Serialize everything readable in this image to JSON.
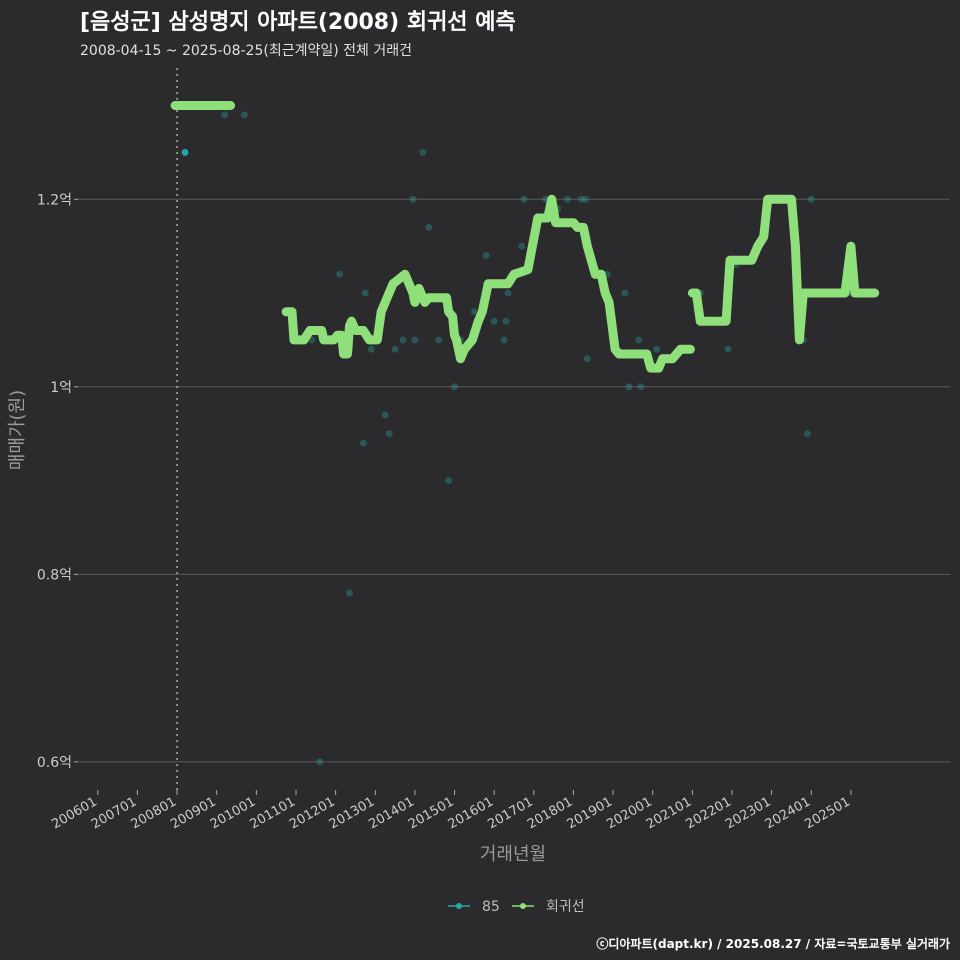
{
  "header": {
    "title": "[음성군] 삼성명지 아파트(2008) 회귀선 예측",
    "subtitle": "2008-04-15 ~ 2025-08-25(최근계약일) 전체 거래건"
  },
  "footer": {
    "credit": "ⓒ디아파트(dapt.kr) / 2025.08.27 / 자료=국토교통부 실거래가"
  },
  "chart_data": {
    "type": "line",
    "title": "[음성군] 삼성명지 아파트(2008) 회귀선 예측",
    "xlabel": "거래년월",
    "ylabel": "매매가(원)",
    "xlim": [
      2005.5,
      2027.5
    ],
    "ylim": [
      0.57,
      1.34
    ],
    "grid": true,
    "x_ticks": [
      2006,
      2007,
      2008,
      2009,
      2010,
      2011,
      2012,
      2013,
      2014,
      2015,
      2016,
      2017,
      2018,
      2019,
      2020,
      2021,
      2022,
      2023,
      2024,
      2025
    ],
    "x_tick_labels": [
      "200601",
      "200701",
      "200801",
      "200901",
      "201001",
      "201101",
      "201201",
      "201301",
      "201401",
      "201501",
      "201601",
      "201701",
      "201801",
      "201901",
      "202001",
      "202101",
      "202201",
      "202301",
      "202401",
      "202501"
    ],
    "y_ticks": [
      0.6,
      0.8,
      1.0,
      1.2
    ],
    "y_tick_labels": [
      "0.6억",
      "0.8억",
      "1억",
      "1.2억"
    ],
    "vline": {
      "x": 2008.0,
      "label": ""
    },
    "colors": {
      "series_85": "#2aa6a6",
      "regression": "#8fe07a",
      "grid": "#5a5a5a",
      "background": "#2b2a2c"
    },
    "legend": {
      "position": "bottom",
      "entries": [
        {
          "name": "85",
          "color": "#2aa6a6"
        },
        {
          "name": "회귀선",
          "color": "#8fe07a"
        }
      ]
    },
    "series": [
      {
        "name": "85",
        "kind": "scatter",
        "points": [
          [
            2008.2,
            1.25
          ],
          [
            2009.2,
            1.29
          ],
          [
            2009.7,
            1.29
          ],
          [
            2011.4,
            1.05
          ],
          [
            2011.6,
            0.6
          ],
          [
            2012.1,
            1.12
          ],
          [
            2012.35,
            0.78
          ],
          [
            2012.7,
            0.94
          ],
          [
            2012.75,
            1.1
          ],
          [
            2012.9,
            1.04
          ],
          [
            2013.25,
            0.97
          ],
          [
            2013.35,
            0.95
          ],
          [
            2013.5,
            1.04
          ],
          [
            2013.7,
            1.05
          ],
          [
            2013.95,
            1.2
          ],
          [
            2014.0,
            1.05
          ],
          [
            2014.2,
            1.25
          ],
          [
            2014.35,
            1.17
          ],
          [
            2014.6,
            1.05
          ],
          [
            2014.85,
            0.9
          ],
          [
            2015.0,
            1.0
          ],
          [
            2015.15,
            1.05
          ],
          [
            2015.5,
            1.08
          ],
          [
            2015.8,
            1.14
          ],
          [
            2016.0,
            1.07
          ],
          [
            2016.25,
            1.05
          ],
          [
            2016.3,
            1.07
          ],
          [
            2016.35,
            1.1
          ],
          [
            2016.7,
            1.15
          ],
          [
            2016.75,
            1.2
          ],
          [
            2017.3,
            1.2
          ],
          [
            2017.45,
            1.18
          ],
          [
            2017.6,
            1.19
          ],
          [
            2017.85,
            1.2
          ],
          [
            2018.2,
            1.2
          ],
          [
            2018.3,
            1.2
          ],
          [
            2018.35,
            1.03
          ],
          [
            2018.85,
            1.12
          ],
          [
            2019.3,
            1.1
          ],
          [
            2019.4,
            1.0
          ],
          [
            2019.65,
            1.05
          ],
          [
            2019.7,
            1.0
          ],
          [
            2020.1,
            1.04
          ],
          [
            2021.2,
            1.1
          ],
          [
            2021.9,
            1.04
          ],
          [
            2022.1,
            1.13
          ],
          [
            2022.7,
            1.15
          ],
          [
            2022.9,
            1.2
          ],
          [
            2023.8,
            1.05
          ],
          [
            2023.9,
            0.95
          ],
          [
            2024.0,
            1.2
          ],
          [
            2024.5,
            1.1
          ],
          [
            2025.0,
            1.1
          ]
        ]
      },
      {
        "name": "회귀선",
        "kind": "line",
        "segments": [
          [
            [
              2007.95,
              1.3
            ],
            [
              2009.35,
              1.3
            ]
          ],
          [
            [
              2010.75,
              1.08
            ],
            [
              2010.9,
              1.08
            ],
            [
              2010.95,
              1.05
            ],
            [
              2011.2,
              1.05
            ],
            [
              2011.35,
              1.06
            ],
            [
              2011.65,
              1.06
            ],
            [
              2011.7,
              1.05
            ],
            [
              2011.95,
              1.05
            ],
            [
              2012.05,
              1.055
            ],
            [
              2012.15,
              1.055
            ],
            [
              2012.2,
              1.035
            ],
            [
              2012.3,
              1.035
            ],
            [
              2012.35,
              1.065
            ],
            [
              2012.4,
              1.07
            ],
            [
              2012.5,
              1.06
            ],
            [
              2012.7,
              1.06
            ],
            [
              2012.85,
              1.05
            ],
            [
              2013.05,
              1.05
            ],
            [
              2013.15,
              1.08
            ],
            [
              2013.25,
              1.09
            ],
            [
              2013.35,
              1.1
            ],
            [
              2013.45,
              1.11
            ],
            [
              2013.6,
              1.115
            ],
            [
              2013.75,
              1.12
            ],
            [
              2013.85,
              1.11
            ],
            [
              2013.95,
              1.1
            ],
            [
              2014.0,
              1.09
            ],
            [
              2014.1,
              1.105
            ],
            [
              2014.25,
              1.09
            ],
            [
              2014.35,
              1.095
            ],
            [
              2014.8,
              1.095
            ],
            [
              2014.85,
              1.08
            ],
            [
              2014.95,
              1.075
            ],
            [
              2015.0,
              1.055
            ],
            [
              2015.05,
              1.05
            ],
            [
              2015.15,
              1.03
            ],
            [
              2015.25,
              1.04
            ],
            [
              2015.45,
              1.05
            ],
            [
              2015.6,
              1.07
            ],
            [
              2015.7,
              1.08
            ],
            [
              2015.8,
              1.1
            ],
            [
              2015.85,
              1.11
            ],
            [
              2016.35,
              1.11
            ],
            [
              2016.5,
              1.12
            ],
            [
              2016.85,
              1.125
            ],
            [
              2017.1,
              1.18
            ],
            [
              2017.35,
              1.18
            ],
            [
              2017.45,
              1.2
            ],
            [
              2017.55,
              1.175
            ],
            [
              2018.0,
              1.175
            ],
            [
              2018.1,
              1.17
            ],
            [
              2018.25,
              1.17
            ],
            [
              2018.35,
              1.15
            ],
            [
              2018.55,
              1.12
            ],
            [
              2018.7,
              1.12
            ],
            [
              2018.8,
              1.1
            ],
            [
              2018.9,
              1.09
            ],
            [
              2019.05,
              1.04
            ],
            [
              2019.15,
              1.035
            ],
            [
              2019.85,
              1.035
            ],
            [
              2019.95,
              1.02
            ],
            [
              2020.15,
              1.02
            ],
            [
              2020.25,
              1.03
            ],
            [
              2020.5,
              1.03
            ],
            [
              2020.7,
              1.04
            ],
            [
              2020.95,
              1.04
            ]
          ],
          [
            [
              2021.0,
              1.1
            ],
            [
              2021.1,
              1.1
            ],
            [
              2021.2,
              1.07
            ],
            [
              2021.85,
              1.07
            ],
            [
              2021.95,
              1.135
            ],
            [
              2022.5,
              1.135
            ],
            [
              2022.65,
              1.15
            ],
            [
              2022.8,
              1.16
            ],
            [
              2022.9,
              1.2
            ],
            [
              2023.5,
              1.2
            ],
            [
              2023.6,
              1.15
            ],
            [
              2023.65,
              1.1
            ],
            [
              2023.7,
              1.05
            ],
            [
              2023.8,
              1.1
            ],
            [
              2024.85,
              1.1
            ],
            [
              2025.0,
              1.15
            ],
            [
              2025.1,
              1.1
            ],
            [
              2025.6,
              1.1
            ]
          ]
        ]
      }
    ]
  }
}
